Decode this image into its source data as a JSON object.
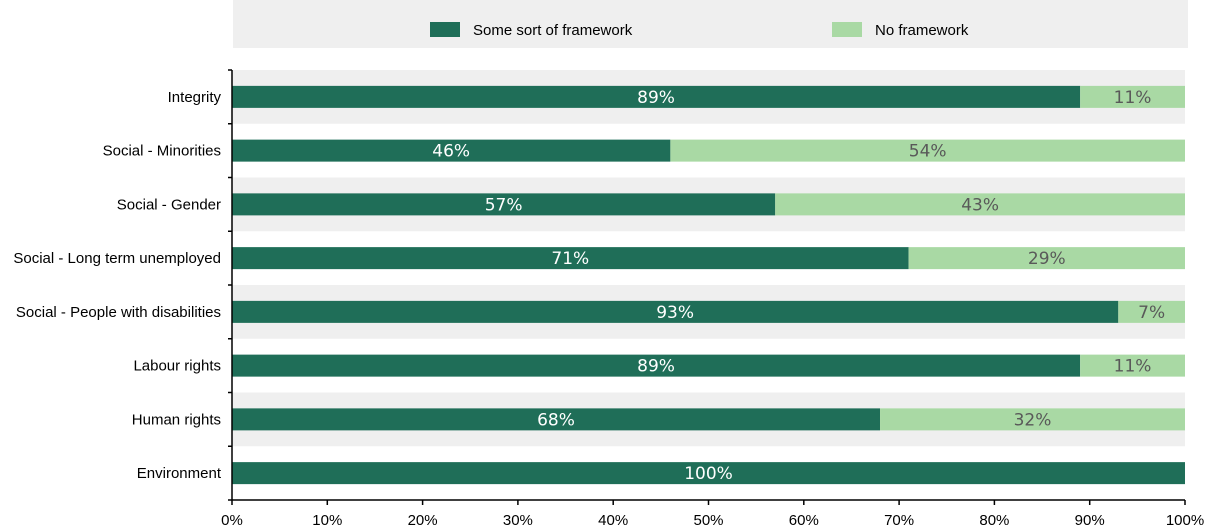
{
  "chart_data": {
    "type": "bar",
    "orientation": "horizontal",
    "stacked": true,
    "categories": [
      "Integrity",
      "Social - Minorities",
      "Social - Gender",
      "Social - Long term unemployed",
      "Social - People with disabilities",
      "Labour rights",
      "Human rights",
      "Environment"
    ],
    "series": [
      {
        "name": "Some sort of framework",
        "color": "#1f6e58",
        "label_color": "#ffffff",
        "values": [
          89,
          46,
          57,
          71,
          93,
          89,
          68,
          100
        ],
        "labels": [
          "89%",
          "46%",
          "57%",
          "71%",
          "93%",
          "89%",
          "68%",
          "100%"
        ]
      },
      {
        "name": "No framework",
        "color": "#a9d9a4",
        "label_color": "#595959",
        "values": [
          11,
          54,
          43,
          29,
          7,
          11,
          32,
          0
        ],
        "labels": [
          "11%",
          "54%",
          "43%",
          "29%",
          "7%",
          "11%",
          "32%",
          ""
        ]
      }
    ],
    "xlim": [
      0,
      100
    ],
    "xticks": [
      "0%",
      "10%",
      "20%",
      "30%",
      "40%",
      "50%",
      "60%",
      "70%",
      "80%",
      "90%",
      "100%"
    ],
    "legend_position": "top",
    "band_color": "#efefef",
    "legend_bg_color": "#efefef",
    "title": "",
    "xlabel": "",
    "ylabel": ""
  }
}
